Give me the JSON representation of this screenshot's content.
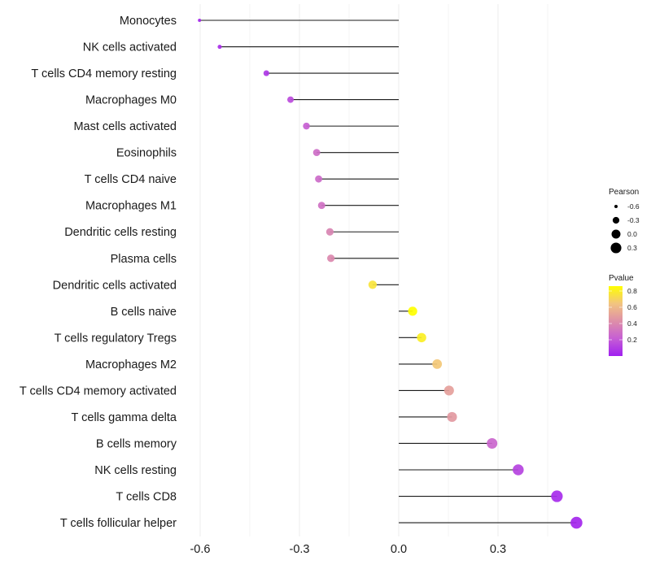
{
  "chart_data": {
    "type": "scatter",
    "subtype": "lollipop",
    "title": "",
    "xlabel": "",
    "ylabel": "",
    "xlim": [
      -0.62,
      0.58
    ],
    "x_ticks": [
      -0.6,
      -0.3,
      0.0,
      0.3
    ],
    "x_tick_labels": [
      "-0.6",
      "-0.3",
      "0.0",
      "0.3"
    ],
    "grid": true,
    "categories": [
      "Monocytes",
      "NK cells activated",
      "T cells CD4 memory resting",
      "Macrophages M0",
      "Mast cells activated",
      "Eosinophils",
      "T cells CD4 naive",
      "Macrophages M1",
      "Dendritic cells resting",
      "Plasma cells",
      "Dendritic cells activated",
      "B cells naive",
      "T cells regulatory  Tregs ",
      "Macrophages M2",
      "T cells CD4 memory activated",
      "T cells gamma delta",
      "B cells memory",
      "NK cells resting",
      "T cells CD8",
      "T cells follicular helper"
    ],
    "series": [
      {
        "name": "Pearson",
        "values": [
          -0.602,
          -0.541,
          -0.4,
          -0.327,
          -0.279,
          -0.248,
          -0.242,
          -0.233,
          -0.208,
          -0.205,
          -0.079,
          0.042,
          0.069,
          0.116,
          0.152,
          0.161,
          0.282,
          0.361,
          0.478,
          0.537
        ]
      },
      {
        "name": "Pvalue",
        "values": [
          0.02,
          0.05,
          0.08,
          0.15,
          0.22,
          0.28,
          0.27,
          0.3,
          0.38,
          0.4,
          0.76,
          0.86,
          0.8,
          0.66,
          0.5,
          0.47,
          0.25,
          0.12,
          0.04,
          0.02
        ]
      }
    ],
    "legend": {
      "placement": "right",
      "size": {
        "title": "Pearson",
        "entries": [
          {
            "label": "-0.6",
            "value": -0.6
          },
          {
            "label": "-0.3",
            "value": -0.3
          },
          {
            "label": "0.0",
            "value": 0.0
          },
          {
            "label": "0.3",
            "value": 0.3
          }
        ]
      },
      "color": {
        "title": "Pvalue",
        "range": [
          0.0,
          0.86
        ],
        "ticks": [
          0.8,
          0.6,
          0.4,
          0.2
        ],
        "tick_labels": [
          "0.8",
          "0.6",
          "0.4",
          "0.2"
        ],
        "low_color": "#A020F0",
        "mid_color": "#D97BB0",
        "high_color": "#FFFF00"
      }
    }
  }
}
